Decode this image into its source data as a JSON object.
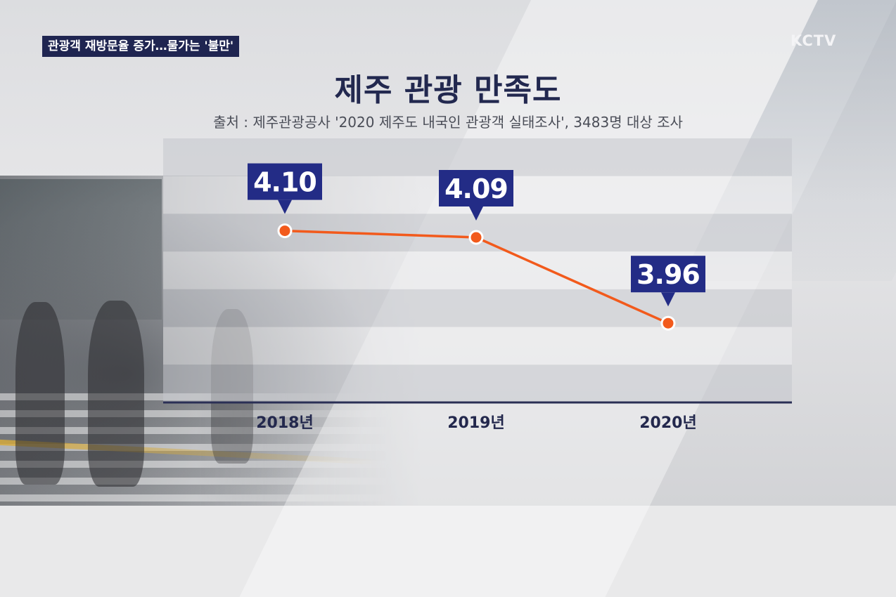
{
  "headline": "관광객 재방문율 증가…물가는 '불만'",
  "logo": "KCTV",
  "chart_data": {
    "type": "line",
    "title": "제주 관광 만족도",
    "subtitle": "출처 : 제주관광공사 '2020 제주도 내국인 관광객 실태조사', 3483명 대상 조사",
    "categories": [
      "2018년",
      "2019년",
      "2020년"
    ],
    "series": [
      {
        "values": [
          4.1,
          4.09,
          3.96
        ]
      }
    ],
    "value_labels": [
      "4.10",
      "4.09",
      "3.96"
    ],
    "ylim": [
      3.84,
      4.24
    ],
    "grid": true,
    "colors": {
      "line": "#f25a1c",
      "label_bg": "#232c86",
      "axis": "#2a2f55"
    }
  }
}
